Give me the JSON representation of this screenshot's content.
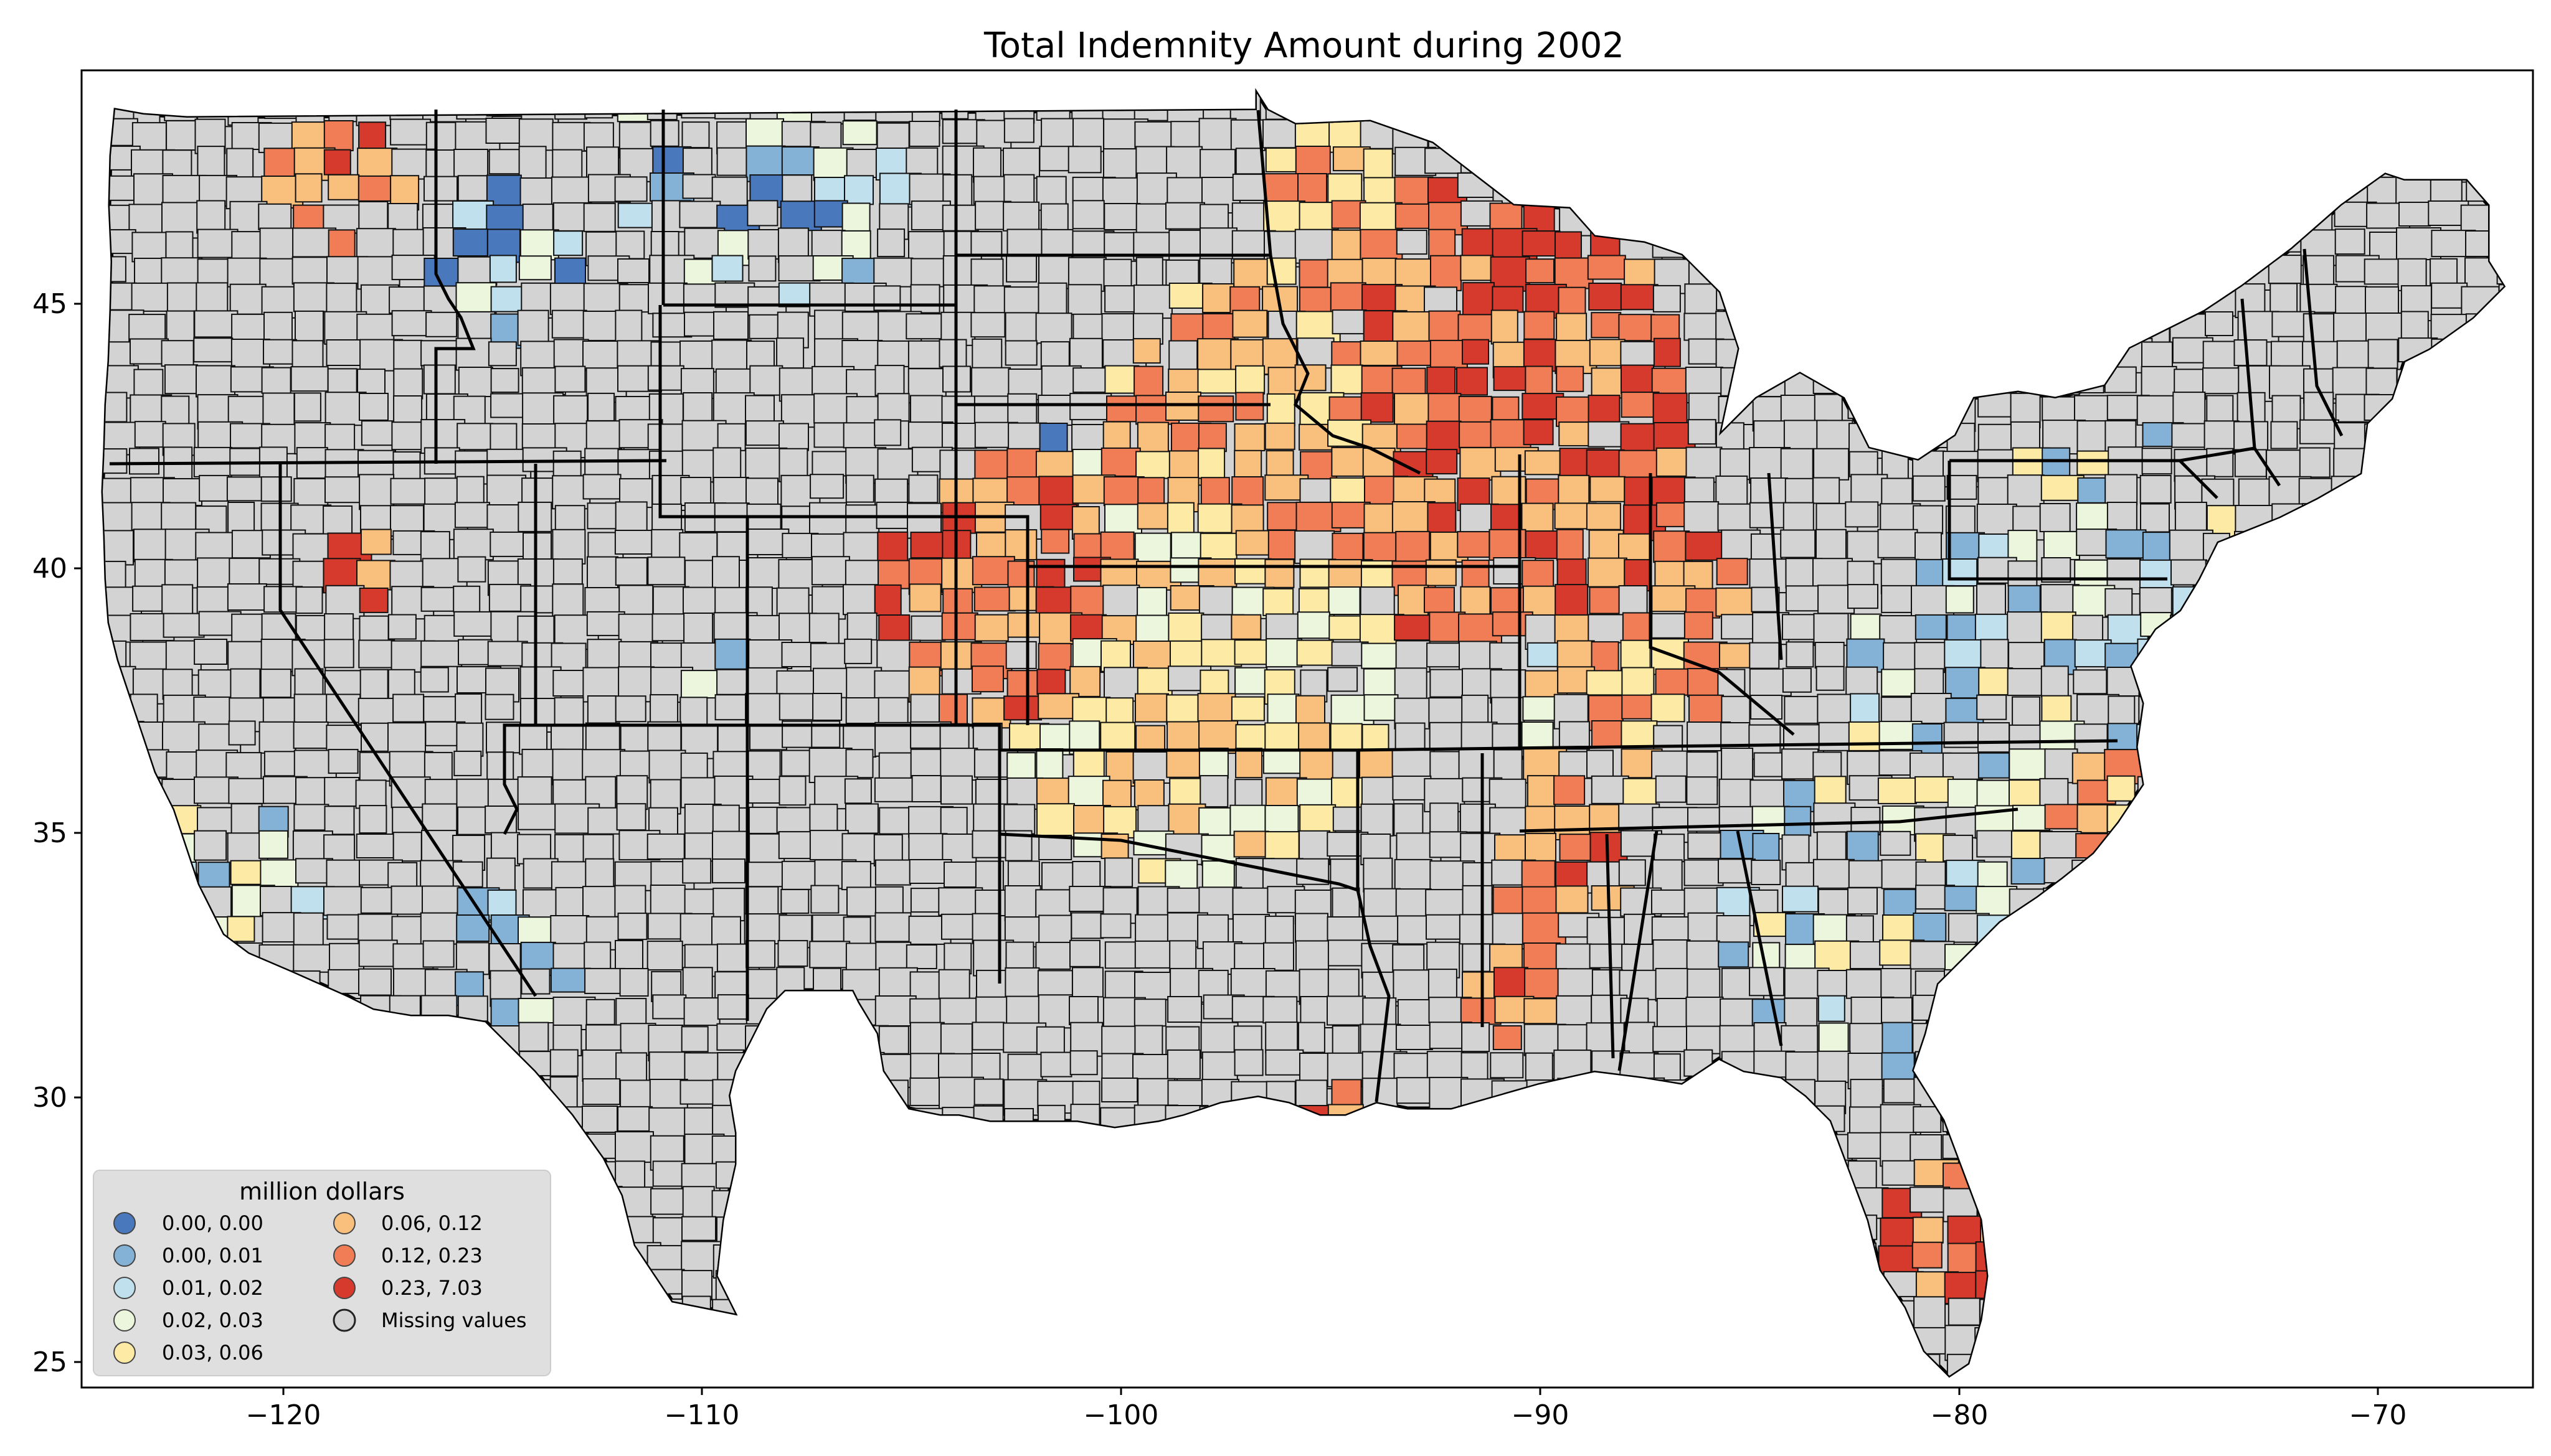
{
  "title": "Total Indemnity Amount during 2002",
  "axes": {
    "x_ticks": [
      "−120",
      "−110",
      "−100",
      "−90",
      "−80",
      "−70"
    ],
    "y_ticks": [
      "45",
      "40",
      "35",
      "30",
      "25"
    ],
    "x_range": [
      -125,
      -67.5
    ],
    "y_range": [
      24.5,
      49.4
    ]
  },
  "legend": {
    "title": "million dollars",
    "placement": "bottom-left",
    "items": [
      {
        "label": "0.00, 0.00",
        "color": "#4a78bd"
      },
      {
        "label": "0.00, 0.01",
        "color": "#83b2d6"
      },
      {
        "label": "0.01, 0.02",
        "color": "#bfe0ec"
      },
      {
        "label": "0.02, 0.03",
        "color": "#ebf6dd"
      },
      {
        "label": "0.03, 0.06",
        "color": "#fdeaa4"
      },
      {
        "label": "0.06, 0.12",
        "color": "#f8c07c"
      },
      {
        "label": "0.12, 0.23",
        "color": "#f07d55"
      },
      {
        "label": "0.23, 7.03",
        "color": "#d63a2c"
      },
      {
        "label": "Missing values",
        "color": "#d3d3d3"
      }
    ]
  },
  "colors": {
    "missing": "#d3d3d3",
    "background": "#ffffff",
    "border": "#000000"
  }
}
